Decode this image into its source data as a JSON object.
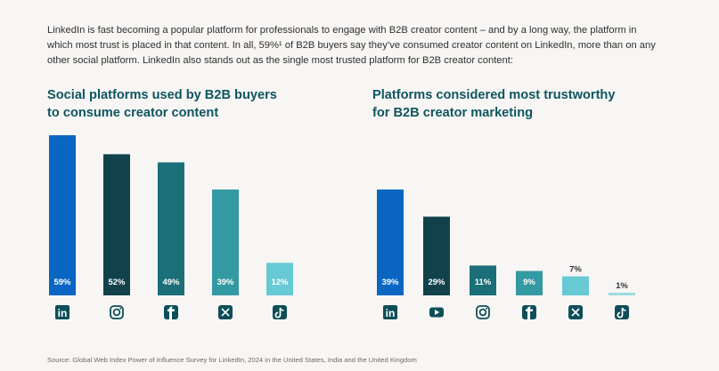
{
  "intro": {
    "line1": "LinkedIn is fast becoming a popular platform for professionals to engage with B2B creator content – and by a long way, the platform in",
    "line2": "which most trust is placed in that content. In all, 59%¹ of B2B buyers say they’ve consumed creator content on LinkedIn, more than on any",
    "line3": "other social platform. LinkedIn also stands out as the single most trusted platform for B2B creator content:"
  },
  "source": "Source: Global Web Index Power of Influence Survey for LinkedIn, 2024 in the United States, India and the United Kingdom",
  "colors": {
    "linkedin": "#0a66c2",
    "dark_teal": "#11424b",
    "teal": "#1b6f78",
    "mid_teal": "#3399a2",
    "light_teal": "#66c9d3",
    "pale_teal": "#9cdde3",
    "icon": "#0d4e58",
    "title": "#0e5560"
  },
  "chart_data": [
    {
      "type": "bar",
      "title_line1": "Social platforms used by B2B buyers",
      "title_line2": "to consume creator content",
      "categories": [
        "LinkedIn",
        "Instagram",
        "Facebook",
        "X",
        "TikTok"
      ],
      "icons": [
        "linkedin-icon",
        "instagram-icon",
        "facebook-icon",
        "x-icon",
        "tiktok-icon"
      ],
      "values": [
        59,
        52,
        49,
        39,
        12
      ],
      "labels": [
        "59%",
        "52%",
        "49%",
        "39%",
        "12%"
      ],
      "bar_colors": [
        "#0a66c2",
        "#11424b",
        "#1b6f78",
        "#3399a2",
        "#66c9d3"
      ],
      "ylim": [
        0,
        59
      ]
    },
    {
      "type": "bar",
      "title_line1": "Platforms considered most trustworthy",
      "title_line2": "for B2B creator marketing",
      "categories": [
        "LinkedIn",
        "YouTube",
        "Instagram",
        "Facebook",
        "X",
        "TikTok"
      ],
      "icons": [
        "linkedin-icon",
        "youtube-icon",
        "instagram-icon",
        "facebook-icon",
        "x-icon",
        "tiktok-icon"
      ],
      "values": [
        39,
        29,
        11,
        9,
        7,
        1
      ],
      "labels": [
        "39%",
        "29%",
        "11%",
        "9%",
        "7%",
        "1%"
      ],
      "bar_colors": [
        "#0a66c2",
        "#11424b",
        "#1b6f78",
        "#3399a2",
        "#66c9d3",
        "#9cdde3"
      ],
      "ylim": [
        0,
        59
      ]
    }
  ]
}
